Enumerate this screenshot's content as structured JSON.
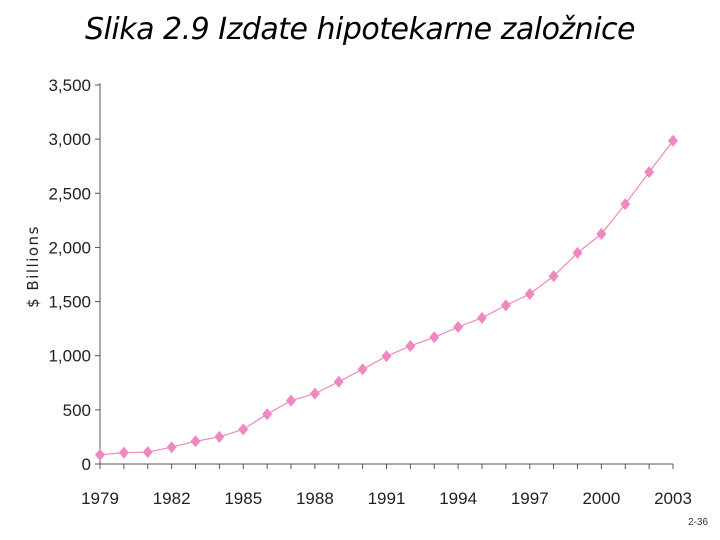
{
  "slide": {
    "title": "Slika 2.9 Izdate hipotekarne založnice",
    "page_number": "2-36"
  },
  "colors": {
    "series": "#f088c0",
    "axis": "#555555",
    "text": "#222222"
  },
  "chart_data": {
    "type": "line",
    "title": "",
    "xlabel": "",
    "ylabel": "$ Billions",
    "x": [
      1979,
      1980,
      1981,
      1982,
      1983,
      1984,
      1985,
      1986,
      1987,
      1988,
      1989,
      1990,
      1991,
      1992,
      1993,
      1994,
      1995,
      1996,
      1997,
      1998,
      1999,
      2000,
      2001,
      2002,
      2003
    ],
    "series": [
      {
        "values": [
          85,
          105,
          110,
          155,
          210,
          250,
          320,
          460,
          585,
          650,
          760,
          875,
          995,
          1090,
          1170,
          1265,
          1350,
          1465,
          1570,
          1735,
          1950,
          2125,
          2400,
          2695,
          2985
        ]
      }
    ],
    "xlim": [
      1979,
      2003
    ],
    "ylim": [
      0,
      3500
    ],
    "xticks": [
      "1979",
      "1982",
      "1985",
      "1988",
      "1991",
      "1994",
      "1997",
      "2000",
      "2003"
    ],
    "yticks": [
      "0",
      "500",
      "1,000",
      "1,500",
      "2,000",
      "2,500",
      "3,000",
      "3,500"
    ],
    "marker": "diamond",
    "grid": false,
    "legend": "none"
  }
}
